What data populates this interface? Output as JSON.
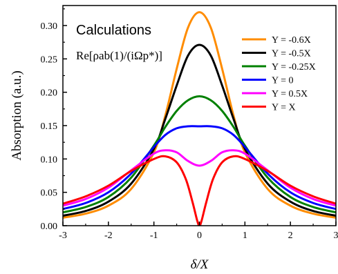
{
  "chart_data": {
    "type": "line",
    "xlabel": "δ/X",
    "ylabel": "Absorption (a.u.)",
    "xlim": [
      -3,
      3
    ],
    "ylim": [
      0,
      0.33
    ],
    "xticks": [
      -3,
      -2,
      -1,
      0,
      1,
      2,
      3
    ],
    "xtick_labels": [
      "-3",
      "-2",
      "-1",
      "0",
      "1",
      "2",
      "3"
    ],
    "yticks": [
      0,
      0.05,
      0.1,
      0.15,
      0.2,
      0.25,
      0.3
    ],
    "ytick_labels": [
      "0.00",
      "0.05",
      "0.10",
      "0.15",
      "0.20",
      "0.25",
      "0.30"
    ],
    "grid": false,
    "legend_position": "top-right",
    "annotation": {
      "title": "Calculations",
      "formula": "Re[ρab(1)/(iΩp*)]"
    },
    "series": [
      {
        "name": "Y = -0.6X",
        "color": "#ff8c00",
        "x": [
          -3,
          -2.5,
          -2,
          -1.5,
          -1,
          -0.75,
          -0.5,
          -0.25,
          0,
          0.25,
          0.5,
          0.75,
          1,
          1.5,
          2,
          2.5,
          3
        ],
        "y": [
          0.012,
          0.018,
          0.03,
          0.055,
          0.11,
          0.165,
          0.235,
          0.297,
          0.32,
          0.297,
          0.235,
          0.165,
          0.11,
          0.055,
          0.03,
          0.018,
          0.012
        ]
      },
      {
        "name": "Y = -0.5X",
        "color": "#000000",
        "x": [
          -3,
          -2.5,
          -2,
          -1.5,
          -1,
          -0.75,
          -0.5,
          -0.25,
          0,
          0.25,
          0.5,
          0.75,
          1,
          1.5,
          2,
          2.5,
          3
        ],
        "y": [
          0.015,
          0.022,
          0.036,
          0.063,
          0.115,
          0.16,
          0.21,
          0.255,
          0.271,
          0.255,
          0.21,
          0.16,
          0.115,
          0.063,
          0.036,
          0.022,
          0.015
        ]
      },
      {
        "name": "Y = -0.25X",
        "color": "#008000",
        "x": [
          -3,
          -2.5,
          -2,
          -1.5,
          -1,
          -0.75,
          -0.5,
          -0.25,
          0,
          0.25,
          0.5,
          0.75,
          1,
          1.5,
          2,
          2.5,
          3
        ],
        "y": [
          0.02,
          0.028,
          0.043,
          0.072,
          0.12,
          0.148,
          0.172,
          0.188,
          0.194,
          0.188,
          0.172,
          0.148,
          0.12,
          0.072,
          0.043,
          0.028,
          0.02
        ]
      },
      {
        "name": "Y = 0",
        "color": "#0000ff",
        "x": [
          -3,
          -2.5,
          -2,
          -1.5,
          -1,
          -0.75,
          -0.5,
          -0.25,
          0,
          0.25,
          0.5,
          0.75,
          1,
          1.5,
          2,
          2.5,
          3
        ],
        "y": [
          0.025,
          0.034,
          0.05,
          0.078,
          0.118,
          0.136,
          0.146,
          0.149,
          0.149,
          0.149,
          0.146,
          0.136,
          0.118,
          0.078,
          0.05,
          0.034,
          0.025
        ]
      },
      {
        "name": "Y = 0.5X",
        "color": "#ff00ff",
        "x": [
          -3,
          -2.5,
          -2,
          -1.5,
          -1,
          -0.75,
          -0.5,
          -0.25,
          0,
          0.25,
          0.5,
          0.75,
          1,
          1.5,
          2,
          2.5,
          3
        ],
        "y": [
          0.03,
          0.04,
          0.057,
          0.083,
          0.108,
          0.113,
          0.11,
          0.097,
          0.09,
          0.097,
          0.11,
          0.113,
          0.108,
          0.083,
          0.057,
          0.04,
          0.03
        ]
      },
      {
        "name": "Y = X",
        "color": "#ff0000",
        "x": [
          -3,
          -2.5,
          -2,
          -1.5,
          -1,
          -0.75,
          -0.5,
          -0.3,
          -0.15,
          -0.05,
          0,
          0.05,
          0.15,
          0.3,
          0.5,
          0.75,
          1,
          1.5,
          2,
          2.5,
          3
        ],
        "y": [
          0.033,
          0.044,
          0.06,
          0.082,
          0.1,
          0.104,
          0.095,
          0.07,
          0.035,
          0.008,
          0.0,
          0.008,
          0.035,
          0.07,
          0.095,
          0.104,
          0.1,
          0.082,
          0.06,
          0.044,
          0.033
        ]
      }
    ]
  }
}
